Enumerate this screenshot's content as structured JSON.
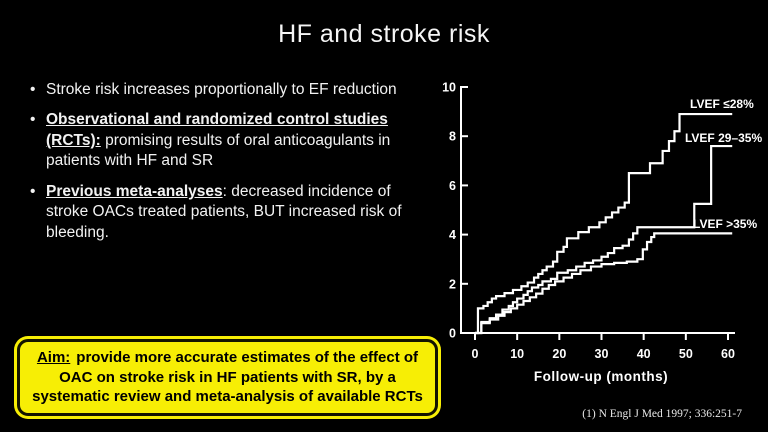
{
  "slide": {
    "title": "HF and stroke risk",
    "citation": "(1) N Engl J Med 1997; 336:251-7",
    "background_color": "#000000",
    "text_color": "#f2f2f2",
    "aim_box_color": "#f7ee05"
  },
  "bullets": [
    {
      "lead": "",
      "rest": "Stroke risk increases proportionally to EF reduction"
    },
    {
      "lead": "Observational and randomized control studies (RCTs):",
      "rest": " promising results of oral anticoagulants in patients with HF and SR"
    },
    {
      "lead": "Previous meta-analyses",
      "rest": ": decreased incidence of stroke OACs treated patients, BUT increased risk of bleeding."
    }
  ],
  "aim": {
    "lead": "Aim:",
    "rest": "provide more accurate estimates of the effect of OAC on stroke risk in HF patients with SR, by a systematic review and meta-analysis of available RCTs"
  },
  "chart_data": {
    "type": "line",
    "subtype": "step",
    "title": "",
    "xlabel": "Follow-up (months)",
    "ylabel": "",
    "xlim": [
      0,
      61
    ],
    "ylim": [
      0,
      10
    ],
    "xticks": [
      0,
      10,
      20,
      30,
      40,
      50,
      60
    ],
    "yticks": [
      0,
      2,
      4,
      6,
      8,
      10
    ],
    "grid": false,
    "line_color": "#ffffff",
    "legend_position": "inline-curve-labels",
    "series": [
      {
        "name": "LVEF ≤28%",
        "label_pos": [
          51,
          9.15
        ],
        "points": [
          [
            0,
            0
          ],
          [
            0.7,
            1.0
          ],
          [
            2,
            1.1
          ],
          [
            3,
            1.25
          ],
          [
            4,
            1.4
          ],
          [
            5,
            1.5
          ],
          [
            7,
            1.62
          ],
          [
            9,
            1.75
          ],
          [
            11,
            1.9
          ],
          [
            12.5,
            2.05
          ],
          [
            14,
            2.25
          ],
          [
            15,
            2.4
          ],
          [
            16,
            2.55
          ],
          [
            17,
            2.7
          ],
          [
            18.5,
            2.9
          ],
          [
            19.5,
            3.3
          ],
          [
            21,
            3.5
          ],
          [
            21.8,
            3.85
          ],
          [
            24.5,
            4.1
          ],
          [
            27,
            4.3
          ],
          [
            29.5,
            4.5
          ],
          [
            31,
            4.7
          ],
          [
            32.5,
            4.9
          ],
          [
            34,
            5.1
          ],
          [
            35.5,
            5.3
          ],
          [
            36.5,
            6.5
          ],
          [
            41.5,
            6.9
          ],
          [
            44.5,
            7.4
          ],
          [
            46,
            7.8
          ],
          [
            47.3,
            8.2
          ],
          [
            48.5,
            8.9
          ],
          [
            61,
            8.9
          ]
        ]
      },
      {
        "name": "LVEF 29–35%",
        "label_pos": [
          49.8,
          7.77
        ],
        "points": [
          [
            0,
            0
          ],
          [
            1.5,
            0.45
          ],
          [
            3.5,
            0.6
          ],
          [
            5,
            0.75
          ],
          [
            6.5,
            0.95
          ],
          [
            8,
            1.1
          ],
          [
            9,
            1.25
          ],
          [
            10,
            1.4
          ],
          [
            11.5,
            1.55
          ],
          [
            12.5,
            1.7
          ],
          [
            13.5,
            1.85
          ],
          [
            15,
            1.95
          ],
          [
            16,
            2.1
          ],
          [
            18,
            2.2
          ],
          [
            19.5,
            2.45
          ],
          [
            22,
            2.55
          ],
          [
            24,
            2.7
          ],
          [
            26,
            2.85
          ],
          [
            28,
            2.95
          ],
          [
            30,
            3.1
          ],
          [
            31.5,
            3.25
          ],
          [
            33,
            3.45
          ],
          [
            35,
            3.55
          ],
          [
            36.5,
            3.8
          ],
          [
            37.5,
            4.05
          ],
          [
            38.5,
            4.3
          ],
          [
            52,
            5.25
          ],
          [
            56,
            7.6
          ],
          [
            61,
            7.6
          ]
        ]
      },
      {
        "name": "LVEF >35%",
        "label_pos": [
          51.7,
          4.27
        ],
        "points": [
          [
            0,
            0
          ],
          [
            1.5,
            0.4
          ],
          [
            3.5,
            0.55
          ],
          [
            5.5,
            0.7
          ],
          [
            7,
            0.85
          ],
          [
            8.5,
            1.0
          ],
          [
            10,
            1.15
          ],
          [
            11.5,
            1.3
          ],
          [
            13,
            1.45
          ],
          [
            14.5,
            1.6
          ],
          [
            16,
            1.8
          ],
          [
            17.5,
            1.95
          ],
          [
            19,
            2.1
          ],
          [
            21,
            2.25
          ],
          [
            23,
            2.4
          ],
          [
            25,
            2.55
          ],
          [
            27.5,
            2.7
          ],
          [
            30,
            2.8
          ],
          [
            33,
            2.85
          ],
          [
            36,
            2.9
          ],
          [
            38.5,
            3.0
          ],
          [
            39.8,
            3.4
          ],
          [
            40.8,
            3.7
          ],
          [
            41.8,
            3.9
          ],
          [
            42.5,
            4.05
          ],
          [
            61,
            4.05
          ]
        ]
      }
    ]
  }
}
